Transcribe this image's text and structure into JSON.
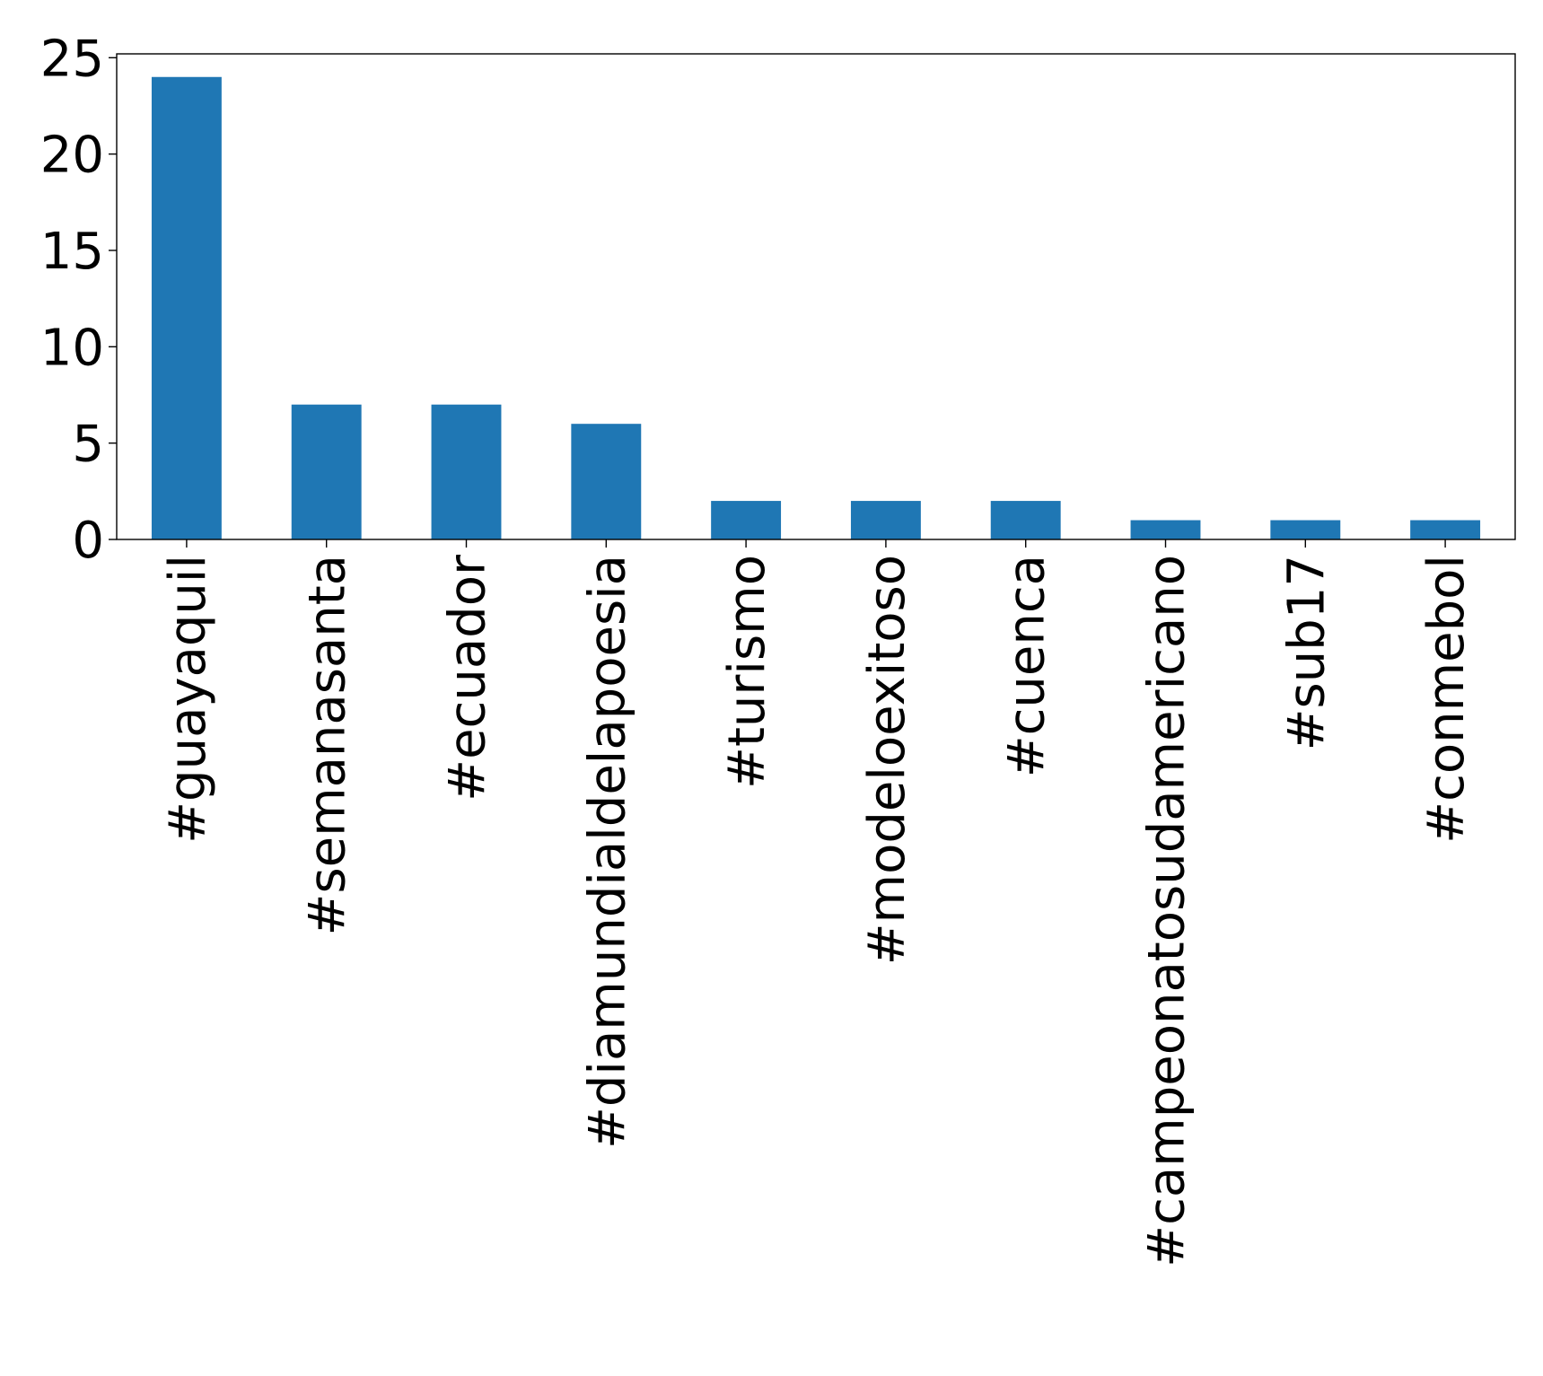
{
  "chart_data": {
    "type": "bar",
    "title": "",
    "xlabel": "",
    "ylabel": "",
    "categories": [
      "#guayaquil",
      "#semanasanta",
      "#ecuador",
      "#diamundialdelapoesia",
      "#turismo",
      "#modeloexitoso",
      "#cuenca",
      "#campeonatosudamericano",
      "#sub17",
      "#conmebol"
    ],
    "values": [
      24,
      7,
      7,
      6,
      2,
      2,
      2,
      1,
      1,
      1
    ],
    "ylim": [
      0,
      25.2
    ],
    "yticks": [
      0,
      5,
      10,
      15,
      20,
      25
    ],
    "grid": false,
    "legend": "none",
    "bar_color": "#1f77b4"
  }
}
